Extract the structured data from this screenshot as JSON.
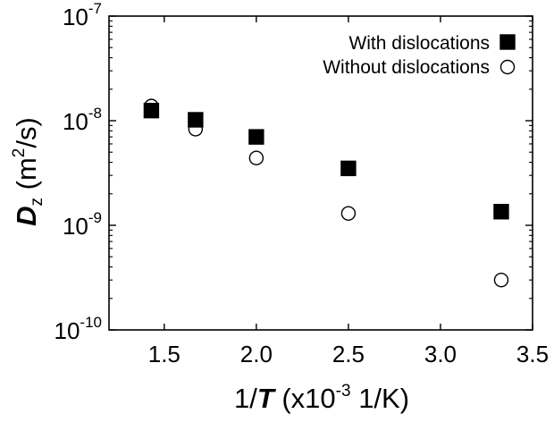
{
  "chart_data": {
    "type": "scatter",
    "title": "",
    "xlabel": {
      "prefix": "1/",
      "symbol": "T",
      "middle": " (x10",
      "exponent": "-3",
      "suffix": " 1/K)"
    },
    "ylabel": {
      "symbol": "D",
      "subscript": "z",
      "middle": " (m",
      "exponent": "2",
      "suffix": "/s)"
    },
    "xlim": [
      1.2,
      3.5
    ],
    "xscale": "linear",
    "ylim": [
      1e-10,
      1e-07
    ],
    "yscale": "log",
    "grid": false,
    "legend_position": "top-right",
    "xticks": [
      {
        "value": 1.5,
        "label": "1.5"
      },
      {
        "value": 2.0,
        "label": "2.0"
      },
      {
        "value": 2.5,
        "label": "2.5"
      },
      {
        "value": 3.0,
        "label": "3.0"
      },
      {
        "value": 3.5,
        "label": "3.5"
      }
    ],
    "yticks": [
      {
        "value": 1e-10,
        "base": "10",
        "exponent": "-10"
      },
      {
        "value": 1e-09,
        "base": "10",
        "exponent": "-9"
      },
      {
        "value": 1e-08,
        "base": "10",
        "exponent": "-8"
      },
      {
        "value": 1e-07,
        "base": "10",
        "exponent": "-7"
      }
    ],
    "series": [
      {
        "name": "With dislocations",
        "marker": "filled-square",
        "color": "#000000",
        "x": [
          1.43,
          1.67,
          2.0,
          2.5,
          3.33
        ],
        "y": [
          1.25e-08,
          1.02e-08,
          7e-09,
          3.5e-09,
          1.35e-09
        ]
      },
      {
        "name": "Without dislocations",
        "marker": "open-circle",
        "color": "#000000",
        "x": [
          1.43,
          1.67,
          2.0,
          2.5,
          3.33
        ],
        "y": [
          1.38e-08,
          8.3e-09,
          4.4e-09,
          1.3e-09,
          3e-10
        ]
      }
    ]
  }
}
